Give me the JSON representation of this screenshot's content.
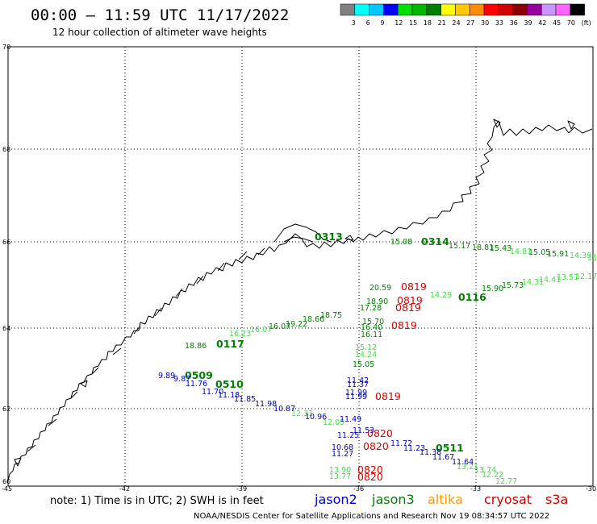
{
  "header": {
    "title": "00:00 – 11:59 UTC 11/17/2022",
    "subtitle": "12 hour collection of altimeter wave heights"
  },
  "legend": {
    "colors": [
      "#808080",
      "#00ffff",
      "#00c8ff",
      "#0000ff",
      "#00e000",
      "#00b800",
      "#008000",
      "#ffff00",
      "#ffc800",
      "#ff8c00",
      "#ff0000",
      "#d20000",
      "#8c0000",
      "#9600a0",
      "#c896ff",
      "#ff64ff",
      "#000000"
    ],
    "labels": [
      "3",
      "6",
      "9",
      "12",
      "15",
      "18",
      "21",
      "24",
      "27",
      "30",
      "33",
      "36",
      "39",
      "42",
      "45",
      "70",
      "(ft)"
    ]
  },
  "axes": {
    "lat_labels": [
      "70",
      "68",
      "66",
      "64",
      "62",
      "60"
    ],
    "lon_labels": [
      "-45",
      "-42",
      "-39",
      "-36",
      "-33",
      "-30"
    ]
  },
  "green_passes": {
    "times": [
      {
        "text": "0313"
      },
      {
        "text": "0314"
      },
      {
        "text": "0116"
      },
      {
        "text": "0117"
      },
      {
        "text": "0509"
      },
      {
        "text": "0510"
      },
      {
        "text": "0511"
      }
    ],
    "dark_values": [
      {
        "text": "15.08"
      },
      {
        "text": "15.43"
      },
      {
        "text": "15.91"
      },
      {
        "text": "15.73"
      },
      {
        "text": "15.90"
      },
      {
        "text": "20.59"
      },
      {
        "text": "18.90"
      },
      {
        "text": "17.28"
      },
      {
        "text": "18.75"
      },
      {
        "text": "18.66"
      },
      {
        "text": "19.22"
      },
      {
        "text": "16.07"
      },
      {
        "text": "15.70"
      },
      {
        "text": "16.40"
      },
      {
        "text": "16.11"
      },
      {
        "text": "18.86"
      },
      {
        "text": "15.05"
      },
      {
        "text": "15.17"
      },
      {
        "text": "18.81"
      },
      {
        "text": "15.05"
      }
    ],
    "light_values": [
      {
        "text": "14.81"
      },
      {
        "text": "14.31"
      },
      {
        "text": "14.41"
      },
      {
        "text": "13.51"
      },
      {
        "text": "12.17"
      },
      {
        "text": "14.39"
      },
      {
        "text": "15"
      },
      {
        "text": "16.07"
      },
      {
        "text": "15.12"
      },
      {
        "text": "14.24"
      },
      {
        "text": "12.77"
      },
      {
        "text": "12.22"
      },
      {
        "text": "13.74"
      },
      {
        "text": "13.21"
      },
      {
        "text": "13.90"
      },
      {
        "text": "13.77"
      },
      {
        "text": "14.29"
      },
      {
        "text": "16.23"
      },
      {
        "text": "12.05"
      },
      {
        "text": "12.31"
      }
    ]
  },
  "blue_values": [
    {
      "text": "9.89"
    },
    {
      "text": "9.87"
    },
    {
      "text": "11.76"
    },
    {
      "text": "11.70"
    },
    {
      "text": "11.18"
    },
    {
      "text": "11.85"
    },
    {
      "text": "11.98"
    },
    {
      "text": "10.87"
    },
    {
      "text": "10.96"
    },
    {
      "text": "11.49"
    },
    {
      "text": "11.42"
    },
    {
      "text": "11.37"
    },
    {
      "text": "11.99"
    },
    {
      "text": "11.99"
    },
    {
      "text": "11.25"
    },
    {
      "text": "10.68"
    },
    {
      "text": "11.27"
    },
    {
      "text": "11.72"
    },
    {
      "text": "11.23"
    },
    {
      "text": "11.38"
    },
    {
      "text": "11.67"
    },
    {
      "text": "11.64"
    },
    {
      "text": "11.53"
    }
  ],
  "red_times": [
    {
      "text": "0819"
    },
    {
      "text": "0819"
    },
    {
      "text": "0819"
    },
    {
      "text": "0819"
    },
    {
      "text": "0819"
    },
    {
      "text": "0820"
    },
    {
      "text": "0820"
    },
    {
      "text": "0820"
    },
    {
      "text": "0820"
    }
  ],
  "footer": {
    "note": "note:  1) Time is in UTC;  2) SWH is in feet",
    "satellites": [
      {
        "name": "jason2",
        "color": "#0000cc"
      },
      {
        "name": "jason3",
        "color": "#008000"
      },
      {
        "name": "altika",
        "color": "#ff9900"
      },
      {
        "name": "cryosat",
        "color": "#cc0000"
      },
      {
        "name": "s3a",
        "color": "#cc0000"
      }
    ],
    "credit": "NOAA/NESDIS Center for Satellite Applications and Research    Nov 19 08:34:57 UTC 2022"
  }
}
